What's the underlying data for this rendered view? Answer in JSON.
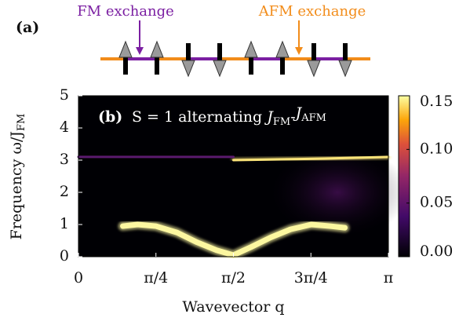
{
  "chart_data": {
    "type": "heatmap",
    "schematic": {
      "panel_label": "(a)",
      "fm_label": "FM exchange",
      "afm_label": "AFM exchange",
      "fm_color": "#7b1fa2",
      "afm_color": "#f28c1a"
    },
    "panel_label": "(b)",
    "title": [
      "S = 1 alternating ",
      "J",
      "FM",
      "-",
      "J",
      "AFM"
    ],
    "xlabel": "Wavevector q",
    "ylabel": [
      "Frequency ω/J",
      "FM"
    ],
    "xlim": [
      0,
      3.14159
    ],
    "xticks": [
      0,
      {
        "value": 0.7854,
        "label": "π/4"
      },
      {
        "value": 1.5708,
        "label": "π/2"
      },
      {
        "value": 2.3562,
        "label": "3π/4"
      },
      {
        "value": 3.14159,
        "label": "π"
      }
    ],
    "ylim": [
      0,
      5
    ],
    "yticks": [
      0,
      1,
      2,
      3,
      4,
      5
    ],
    "zlim": [
      0,
      0.15
    ],
    "zticks": [
      {
        "value": 0,
        "label": "0.00"
      },
      0.05,
      {
        "value": 0.1,
        "label": "0.10"
      },
      0.15
    ],
    "series": [
      {
        "color": "#fcf7a0",
        "x": [
          0.45,
          0.6,
          0.785,
          1.0,
          1.2,
          1.4,
          1.571,
          1.75,
          1.95,
          2.15,
          2.36,
          2.55,
          2.7
        ],
        "values": [
          0.95,
          1.0,
          0.95,
          0.75,
          0.45,
          0.2,
          0.05,
          0.3,
          0.6,
          0.85,
          1.0,
          0.95,
          0.9
        ]
      },
      {
        "color": "#fbe47a",
        "x": [
          1.571,
          2.0,
          2.5,
          3.14159
        ],
        "values": [
          3.0,
          3.02,
          3.05,
          3.1
        ]
      },
      {
        "color": "#5a1a6e",
        "x": [
          0,
          0.8,
          1.571
        ],
        "values": [
          3.1,
          3.1,
          3.1
        ]
      }
    ]
  }
}
